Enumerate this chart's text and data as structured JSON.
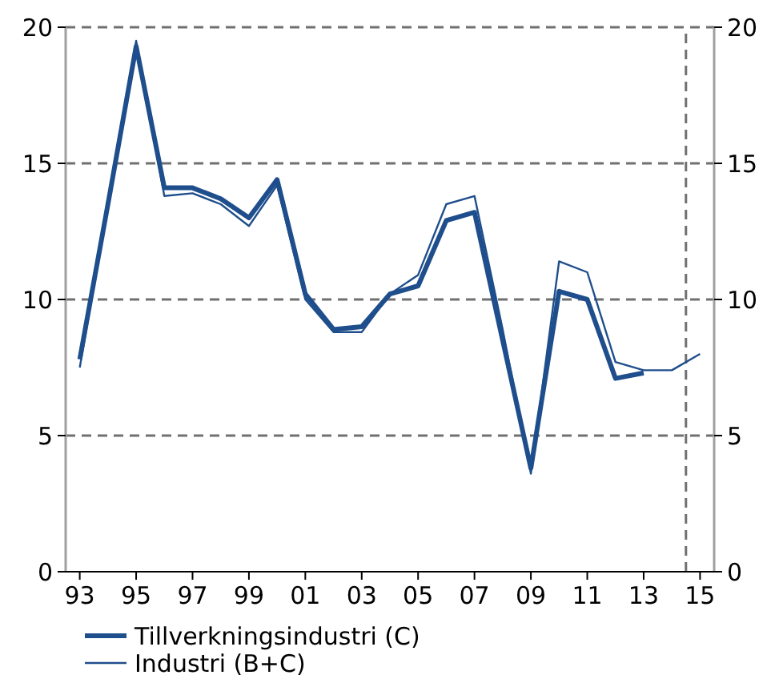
{
  "chart_data": {
    "type": "line",
    "x": [
      1993,
      1994,
      1995,
      1996,
      1997,
      1998,
      1999,
      2000,
      2001,
      2002,
      2003,
      2004,
      2005,
      2006,
      2007,
      2008,
      2009,
      2010,
      2011,
      2012,
      2013,
      2014,
      2015
    ],
    "series": [
      {
        "name": "Tillverkningsindustri (C)",
        "color": "#1f4e8c",
        "values": [
          7.8,
          13.5,
          19.3,
          14.1,
          14.1,
          13.7,
          13.0,
          14.4,
          10.2,
          8.9,
          9.0,
          10.2,
          10.5,
          12.9,
          13.2,
          8.5,
          3.8,
          10.3,
          10.0,
          7.1,
          7.3,
          null,
          null
        ]
      },
      {
        "name": "Industri (B+C)",
        "color": "#1f4e8c",
        "values": [
          7.5,
          13.5,
          19.5,
          13.8,
          13.9,
          13.5,
          12.7,
          14.2,
          10.0,
          8.8,
          8.8,
          10.2,
          10.9,
          13.5,
          13.8,
          8.9,
          3.6,
          11.4,
          11.0,
          7.7,
          7.4,
          7.4,
          8.0
        ]
      }
    ],
    "xlim": [
      1992.5,
      2015.5
    ],
    "xticks": [
      {
        "value": 1993,
        "label": "93"
      },
      {
        "value": 1995,
        "label": "95"
      },
      {
        "value": 1997,
        "label": "97"
      },
      {
        "value": 1999,
        "label": "99"
      },
      {
        "value": 2001,
        "label": "01"
      },
      {
        "value": 2003,
        "label": "03"
      },
      {
        "value": 2005,
        "label": "05"
      },
      {
        "value": 2007,
        "label": "07"
      },
      {
        "value": 2009,
        "label": "09"
      },
      {
        "value": 2011,
        "label": "11"
      },
      {
        "value": 2013,
        "label": "13"
      },
      {
        "value": 2015,
        "label": "15"
      }
    ],
    "marker": "none",
    "ylim": [
      0,
      20
    ],
    "yticks": [
      0,
      5,
      10,
      15,
      20
    ],
    "y2lim": [
      0,
      20
    ],
    "y2ticks": [
      0,
      5,
      10,
      15,
      20
    ],
    "grid": "y",
    "legend": "bottom",
    "line_style": "solid",
    "ref_lines": [
      {
        "axis": "x",
        "value": 2014.5,
        "color": "#707070",
        "line_style": "dashed"
      }
    ]
  }
}
